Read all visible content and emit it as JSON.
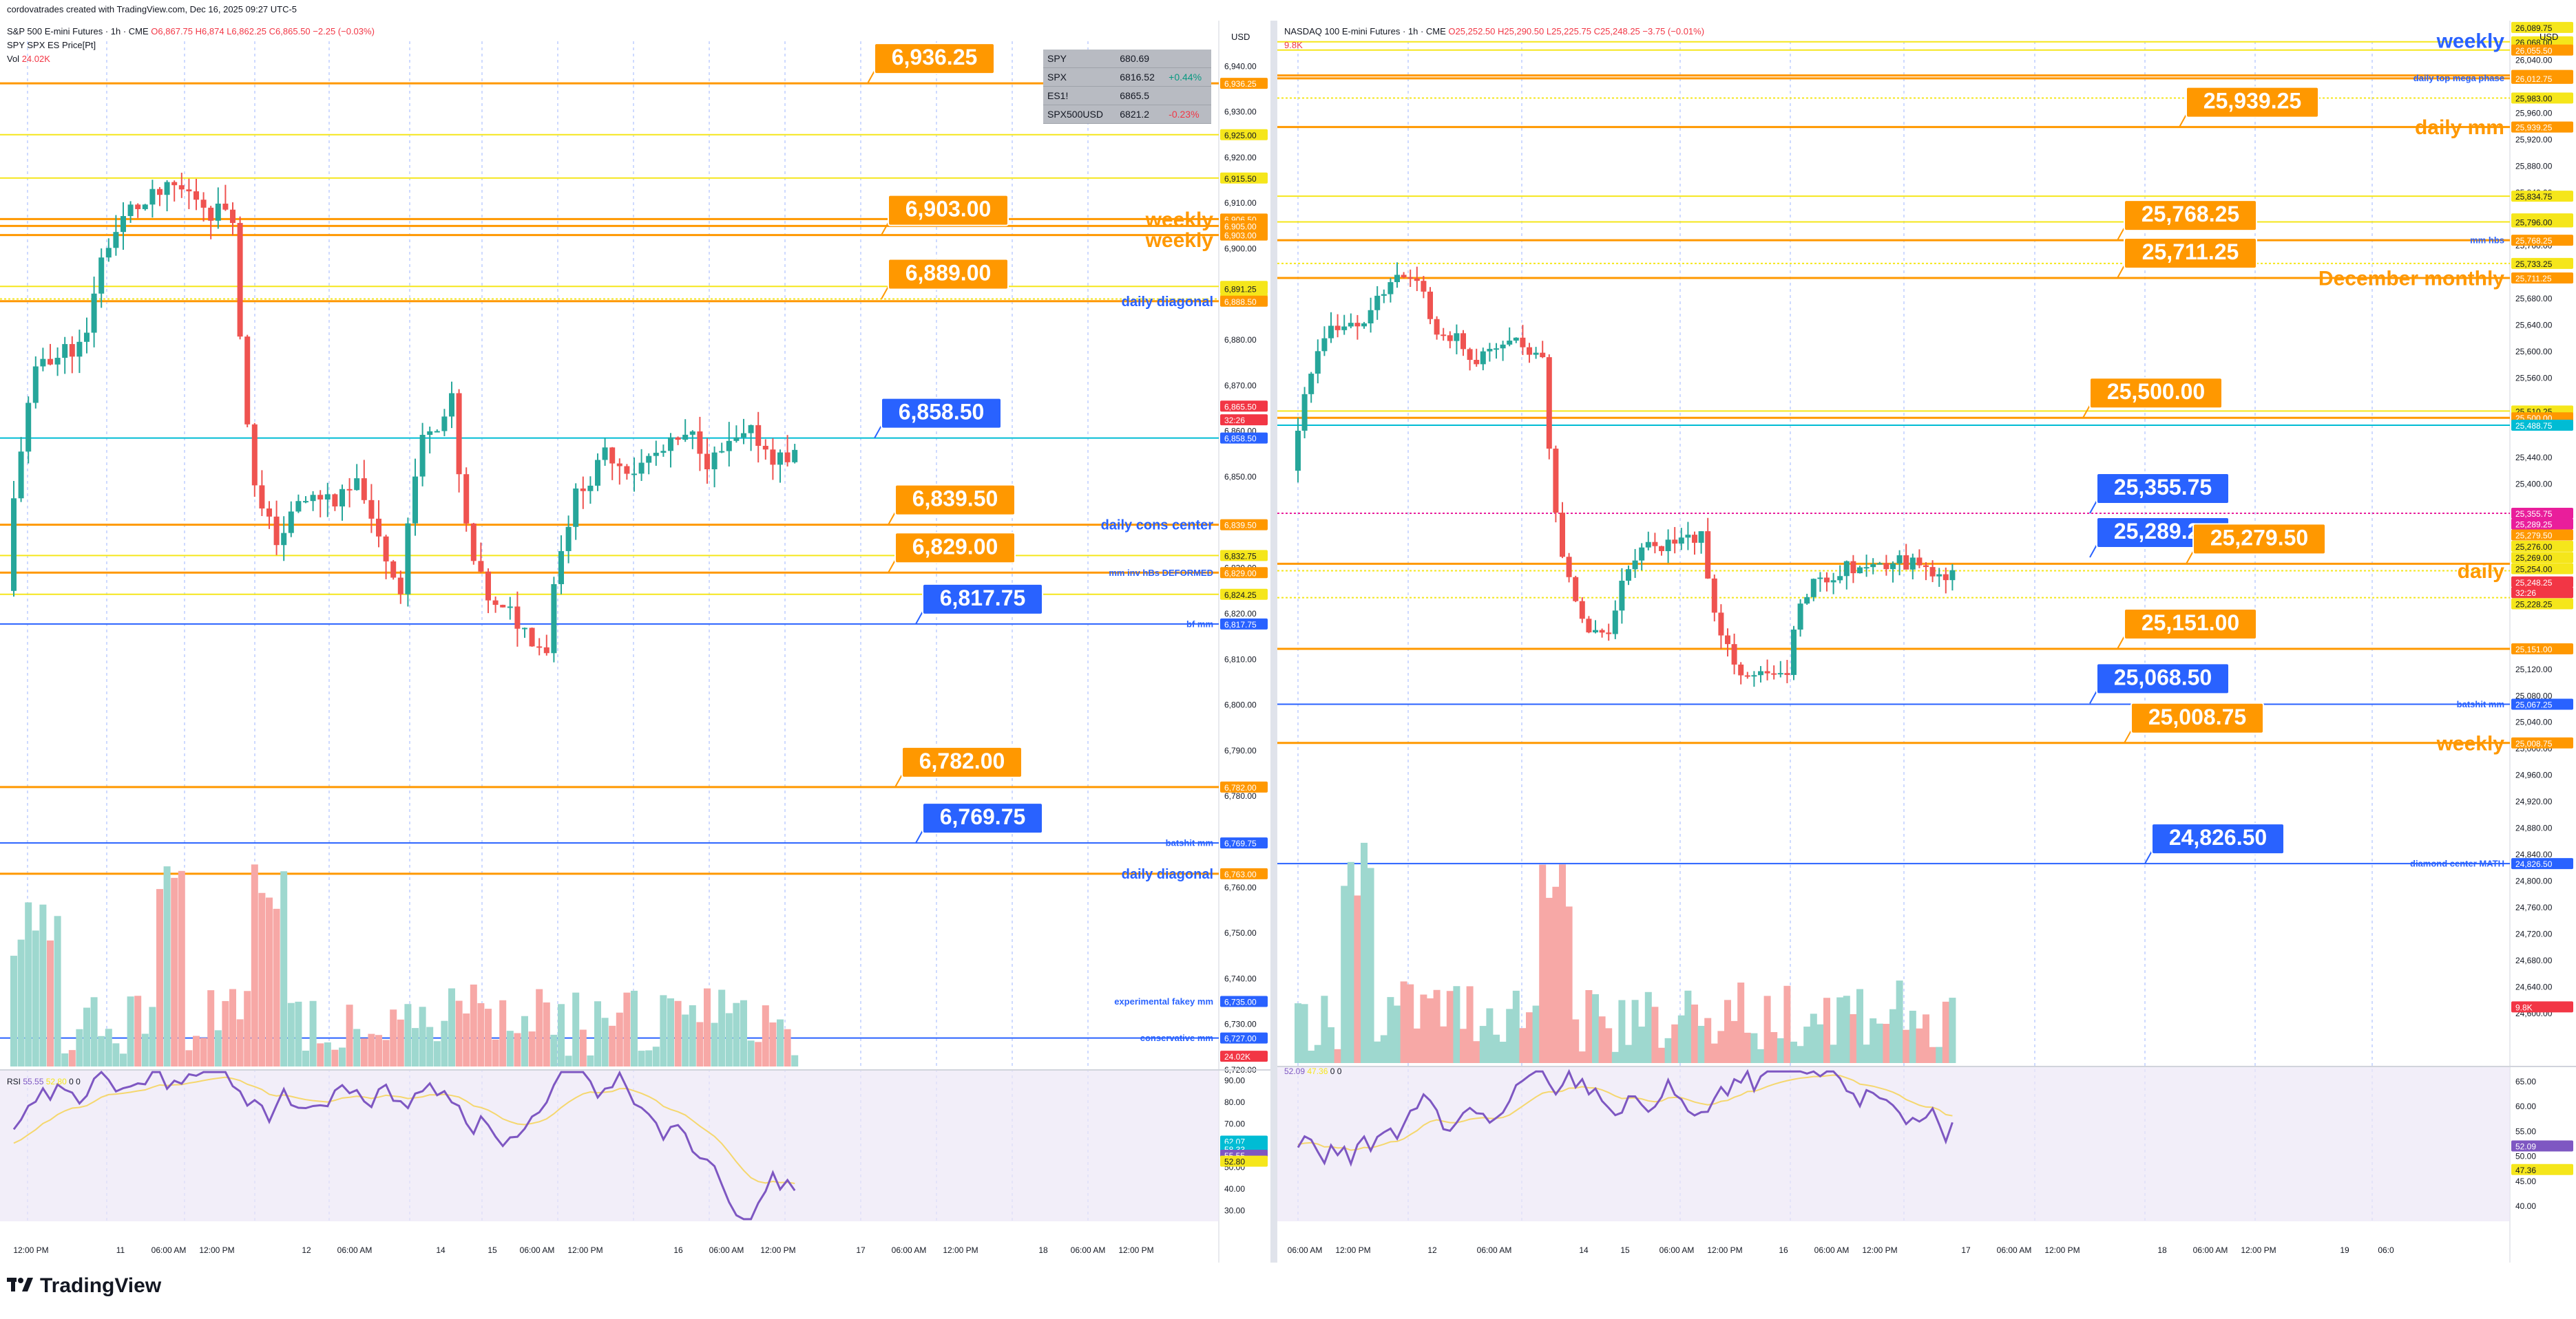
{
  "header": {
    "attribution": "cordovatrades created with TradingView.com, Dec 16, 2025 09:27 UTC-5"
  },
  "branding": {
    "logo_text": "TradingView"
  },
  "colors": {
    "orange": "#ff9800",
    "yellow": "#f5e61b",
    "blue": "#2962ff",
    "teal": "#00bcd4",
    "pink": "#f48fe6",
    "up": "#26a69a",
    "down": "#ef5350",
    "rsi": "#7e57c2"
  },
  "left_chart": {
    "symbol": "S&P 500 E-mini Futures · 1h · CME",
    "ohlc": {
      "o": "O6,867.75",
      "h": "H6,874",
      "l": "L6,862.25",
      "c": "C6,865.50",
      "chg": "−2.25 (−0.03%)"
    },
    "overlay": "SPY SPX ES Price[Pt]",
    "volume_label": "Vol",
    "volume_value": "24.02K",
    "currency": "USD",
    "ylim": [
      6720,
      6950
    ],
    "y_ticks": [
      "6,940.00",
      "6,930.00",
      "6,920.00",
      "6,910.00",
      "6,900.00",
      "6,890.00",
      "6,880.00",
      "6,870.00",
      "6,860.00",
      "6,850.00",
      "6,840.00",
      "6,830.00",
      "6,820.00",
      "6,810.00",
      "6,800.00",
      "6,790.00",
      "6,780.00",
      "6,770.00",
      "6,760.00",
      "6,750.00",
      "6,740.00",
      "6,730.00",
      "6,720.00"
    ],
    "x_ticks": [
      "12:00 PM",
      "11",
      "06:00 AM",
      "12:00 PM",
      "12",
      "06:00 AM",
      "14",
      "15",
      "06:00 AM",
      "12:00 PM",
      "16",
      "06:00 AM",
      "12:00 PM",
      "17",
      "06:00 AM",
      "12:00 PM",
      "18",
      "06:00 AM",
      "12:00 PM"
    ],
    "callouts": [
      {
        "text": "6,936.25",
        "price": 6936.25,
        "kind": "orange"
      },
      {
        "text": "6,903.00",
        "price": 6903.0,
        "kind": "orange"
      },
      {
        "text": "6,889.00",
        "price": 6889.0,
        "kind": "orange"
      },
      {
        "text": "6,858.50",
        "price": 6858.5,
        "kind": "blue"
      },
      {
        "text": "6,839.50",
        "price": 6839.5,
        "kind": "orange"
      },
      {
        "text": "6,829.00",
        "price": 6829.0,
        "kind": "orange"
      },
      {
        "text": "6,817.75",
        "price": 6817.75,
        "kind": "blue"
      },
      {
        "text": "6,782.00",
        "price": 6782.0,
        "kind": "orange"
      },
      {
        "text": "6,769.75",
        "price": 6769.75,
        "kind": "blue"
      }
    ],
    "level_labels": [
      {
        "text": "weekly",
        "price": 6906.5,
        "kind": "orange",
        "size": "big"
      },
      {
        "text": "weekly",
        "price": 6902.0,
        "kind": "orange",
        "size": "big"
      },
      {
        "text": "daily diagonal",
        "price": 6888.5,
        "kind": "blue",
        "size": "mid"
      },
      {
        "text": "daily cons center",
        "price": 6839.5,
        "kind": "blue",
        "size": "mid"
      },
      {
        "text": "mm inv hBs  DEFORMED",
        "price": 6829.0,
        "kind": "blue",
        "size": "small"
      },
      {
        "text": "bf mm",
        "price": 6817.75,
        "kind": "blue",
        "size": "small"
      },
      {
        "text": "batshit mm",
        "price": 6769.75,
        "kind": "blue",
        "size": "small"
      },
      {
        "text": "daily diagonal",
        "price": 6763.0,
        "kind": "blue",
        "size": "mid"
      },
      {
        "text": "experimental fakey mm",
        "price": 6735.0,
        "kind": "blue",
        "size": "small"
      },
      {
        "text": "conservative mm",
        "price": 6727.0,
        "kind": "blue",
        "size": "small"
      }
    ],
    "price_tags": [
      {
        "text": "6,936.25",
        "price": 6936.25,
        "kind": "orange"
      },
      {
        "text": "6,925.00",
        "price": 6925.0,
        "kind": "yellow"
      },
      {
        "text": "6,915.50",
        "price": 6915.5,
        "kind": "yellow"
      },
      {
        "text": "6,906.50",
        "price": 6906.5,
        "kind": "orange"
      },
      {
        "text": "6,905.00",
        "price": 6905.0,
        "kind": "orange"
      },
      {
        "text": "6,903.00",
        "price": 6903.0,
        "kind": "orange"
      },
      {
        "text": "6,891.75",
        "price": 6891.75,
        "kind": "yellow"
      },
      {
        "text": "6,891.25",
        "price": 6891.25,
        "kind": "yellow"
      },
      {
        "text": "6,889.00",
        "price": 6889.0,
        "kind": "yellow"
      },
      {
        "text": "6,888.50",
        "price": 6888.5,
        "kind": "orange"
      },
      {
        "text": "6,865.50",
        "price": 6865.5,
        "kind": "red"
      },
      {
        "text": "32:26",
        "price": 6862.5,
        "kind": "red"
      },
      {
        "text": "6,858.50",
        "price": 6858.5,
        "kind": "blue"
      },
      {
        "text": "6,839.50",
        "price": 6839.5,
        "kind": "orange"
      },
      {
        "text": "6,832.75",
        "price": 6832.75,
        "kind": "yellow"
      },
      {
        "text": "6,829.00",
        "price": 6829.0,
        "kind": "orange"
      },
      {
        "text": "6,824.25",
        "price": 6824.25,
        "kind": "yellow"
      },
      {
        "text": "6,817.75",
        "price": 6817.75,
        "kind": "blue"
      },
      {
        "text": "6,782.00",
        "price": 6782.0,
        "kind": "orange"
      },
      {
        "text": "6,769.75",
        "price": 6769.75,
        "kind": "blue"
      },
      {
        "text": "6,763.00",
        "price": 6763.0,
        "kind": "orange"
      },
      {
        "text": "6,735.00",
        "price": 6735.0,
        "kind": "blue"
      },
      {
        "text": "6,727.00",
        "price": 6727.0,
        "kind": "blue"
      },
      {
        "text": "24.02K",
        "price": 6723.0,
        "kind": "red"
      }
    ],
    "lines": [
      {
        "price": 6936.25,
        "kind": "orange"
      },
      {
        "price": 6925,
        "kind": "yellow"
      },
      {
        "price": 6915.5,
        "kind": "yellow"
      },
      {
        "price": 6906.5,
        "kind": "orange"
      },
      {
        "price": 6905,
        "kind": "orange"
      },
      {
        "price": 6903,
        "kind": "orange"
      },
      {
        "price": 6891.75,
        "kind": "yellow"
      },
      {
        "price": 6889,
        "kind": "yellowdash"
      },
      {
        "price": 6888.5,
        "kind": "orange"
      },
      {
        "price": 6858.5,
        "kind": "teal"
      },
      {
        "price": 6839.5,
        "kind": "orange"
      },
      {
        "price": 6832.75,
        "kind": "yellow"
      },
      {
        "price": 6829,
        "kind": "orange"
      },
      {
        "price": 6824.25,
        "kind": "yellow"
      },
      {
        "price": 6817.75,
        "kind": "blue"
      },
      {
        "price": 6782,
        "kind": "orange"
      },
      {
        "price": 6769.75,
        "kind": "blue"
      },
      {
        "price": 6763,
        "kind": "orange"
      },
      {
        "price": 6727,
        "kind": "blue"
      }
    ],
    "rsi": {
      "label": "RSI",
      "v1": "55.55",
      "v2": "52.80",
      "v3": "0",
      "v4": "0",
      "ylim": [
        25,
        95
      ],
      "ticks": [
        "90.00",
        "80.00",
        "70.00",
        "60.00",
        "50.00",
        "40.00",
        "30.00"
      ],
      "tags": [
        {
          "text": "62.07",
          "v": 62.07,
          "kind": "teal"
        },
        {
          "text": "58.33",
          "v": 58.33,
          "kind": "teal"
        },
        {
          "text": "55.55",
          "v": 55.55,
          "kind": "purple"
        },
        {
          "text": "52.80",
          "v": 52.8,
          "kind": "yellow"
        }
      ]
    },
    "watchlist": [
      {
        "sym": "SPY",
        "price": "680.69",
        "chg": ""
      },
      {
        "sym": "SPX",
        "price": "6816.52",
        "chg": "+0.44%"
      },
      {
        "sym": "ES1!",
        "price": "6865.5",
        "chg": ""
      },
      {
        "sym": "SPX500USD",
        "price": "6821.2",
        "chg": "-0.23%"
      }
    ]
  },
  "right_chart": {
    "symbol": "NASDAQ 100 E-mini Futures · 1h · CME",
    "ohlc": {
      "o": "O25,252.50",
      "h": "H25,290.50",
      "l": "L25,225.75",
      "c": "C25,248.25",
      "chg": "−3.75 (−0.01%)"
    },
    "volume_value": "9.8K",
    "currency": "USD",
    "ylim": [
      24520,
      26100
    ],
    "y_ticks": [
      "26,040.00",
      "25,960.00",
      "25,920.00",
      "25,880.00",
      "25,840.00",
      "25,760.00",
      "25,680.00",
      "25,640.00",
      "25,600.00",
      "25,560.00",
      "25,440.00",
      "25,400.00",
      "25,120.00",
      "25,080.00",
      "25,040.00",
      "25,000.00",
      "24,960.00",
      "24,920.00",
      "24,880.00",
      "24,840.00",
      "24,800.00",
      "24,760.00",
      "24,720.00",
      "24,680.00",
      "24,640.00",
      "24,600.00"
    ],
    "x_ticks": [
      "06:00 AM",
      "12:00 PM",
      "12",
      "06:00 AM",
      "14",
      "15",
      "06:00 AM",
      "12:00 PM",
      "16",
      "06:00 AM",
      "12:00 PM",
      "17",
      "06:00 AM",
      "12:00 PM",
      "18",
      "06:00 AM",
      "12:00 PM",
      "19",
      "06:0"
    ],
    "callouts": [
      {
        "text": "25,939.25",
        "price": 25939.25,
        "kind": "orange"
      },
      {
        "text": "25,768.25",
        "price": 25768.25,
        "kind": "orange"
      },
      {
        "text": "25,711.25",
        "price": 25711.25,
        "kind": "orange"
      },
      {
        "text": "25,500.00",
        "price": 25500,
        "kind": "orange"
      },
      {
        "text": "25,355.75",
        "price": 25355.75,
        "kind": "blue"
      },
      {
        "text": "25,289.25",
        "price": 25289.25,
        "kind": "blue"
      },
      {
        "text": "25,279.50",
        "price": 25279.5,
        "kind": "orange"
      },
      {
        "text": "25,151.00",
        "price": 25151,
        "kind": "orange"
      },
      {
        "text": "25,068.50",
        "price": 25068.5,
        "kind": "blue"
      },
      {
        "text": "25,008.75",
        "price": 25008.75,
        "kind": "orange"
      },
      {
        "text": "24,826.50",
        "price": 24826.5,
        "kind": "blue"
      }
    ],
    "level_labels": [
      {
        "text": "weekly",
        "price": 26070,
        "kind": "blue",
        "size": "big"
      },
      {
        "text": "daily top mega phase",
        "price": 26013,
        "kind": "blue",
        "size": "small"
      },
      {
        "text": "daily mm",
        "price": 25939.25,
        "kind": "orange",
        "size": "big"
      },
      {
        "text": "mm hbs",
        "price": 25768.25,
        "kind": "blue",
        "size": "small"
      },
      {
        "text": "December monthly",
        "price": 25711.25,
        "kind": "orange",
        "size": "big"
      },
      {
        "text": "daily",
        "price": 25269,
        "kind": "orange",
        "size": "big"
      },
      {
        "text": "batshit mm",
        "price": 25067.25,
        "kind": "blue",
        "size": "small"
      },
      {
        "text": "weekly",
        "price": 25008.75,
        "kind": "orange",
        "size": "big"
      },
      {
        "text": "diamond center MATH",
        "price": 24826.5,
        "kind": "blue",
        "size": "small"
      }
    ],
    "price_tags": [
      {
        "text": "26,089.75",
        "price": 26089.75,
        "kind": "yellow"
      },
      {
        "text": "26,068.00",
        "price": 26068,
        "kind": "yellow"
      },
      {
        "text": "26,055.50",
        "price": 26055.5,
        "kind": "orange"
      },
      {
        "text": "26,017.25",
        "price": 26017.25,
        "kind": "orange"
      },
      {
        "text": "26,012.75",
        "price": 26012.75,
        "kind": "orange"
      },
      {
        "text": "25,983.00",
        "price": 25983,
        "kind": "yellow"
      },
      {
        "text": "25,939.25",
        "price": 25939.25,
        "kind": "orange"
      },
      {
        "text": "25,834.75",
        "price": 25834.75,
        "kind": "yellow"
      },
      {
        "text": "25,800.50",
        "price": 25800.5,
        "kind": "yellow"
      },
      {
        "text": "25,796.00",
        "price": 25796,
        "kind": "yellow"
      },
      {
        "text": "25,768.25",
        "price": 25768.25,
        "kind": "orange"
      },
      {
        "text": "25,733.25",
        "price": 25733.25,
        "kind": "yellow"
      },
      {
        "text": "25,711.25",
        "price": 25711.25,
        "kind": "orange"
      },
      {
        "text": "25,510.25",
        "price": 25510.25,
        "kind": "yellow"
      },
      {
        "text": "25,500.00",
        "price": 25500,
        "kind": "orange"
      },
      {
        "text": "25,488.75",
        "price": 25488.75,
        "kind": "teal"
      },
      {
        "text": "25,355.75",
        "price": 25355.75,
        "kind": "magenta"
      },
      {
        "text": "25,289.25",
        "price": 25339.5,
        "kind": "magenta"
      },
      {
        "text": "25,279.50",
        "price": 25323,
        "kind": "orange"
      },
      {
        "text": "25,276.00",
        "price": 25306,
        "kind": "yellow"
      },
      {
        "text": "25,269.00",
        "price": 25289,
        "kind": "yellow"
      },
      {
        "text": "25,254.00",
        "price": 25272,
        "kind": "yellow"
      },
      {
        "text": "25,248.25",
        "price": 25252,
        "kind": "red"
      },
      {
        "text": "32:26",
        "price": 25236,
        "kind": "red"
      },
      {
        "text": "25,228.25",
        "price": 25219,
        "kind": "yellow"
      },
      {
        "text": "25,151.00",
        "price": 25151,
        "kind": "orange"
      },
      {
        "text": "25,067.25",
        "price": 25067.25,
        "kind": "blue"
      },
      {
        "text": "25,008.75",
        "price": 25008.75,
        "kind": "orange"
      },
      {
        "text": "24,826.50",
        "price": 24826.5,
        "kind": "blue"
      },
      {
        "text": "9.8K",
        "price": 24610,
        "kind": "red"
      }
    ],
    "lines": [
      {
        "price": 26068,
        "kind": "yellow"
      },
      {
        "price": 26055.5,
        "kind": "yellow"
      },
      {
        "price": 26017.25,
        "kind": "orange"
      },
      {
        "price": 26012.75,
        "kind": "orange"
      },
      {
        "price": 25983,
        "kind": "yellowdash"
      },
      {
        "price": 25939.25,
        "kind": "orange"
      },
      {
        "price": 25834.75,
        "kind": "yellow"
      },
      {
        "price": 25796,
        "kind": "yellow"
      },
      {
        "price": 25768.25,
        "kind": "orange"
      },
      {
        "price": 25733.25,
        "kind": "yellowdash"
      },
      {
        "price": 25711.25,
        "kind": "orange"
      },
      {
        "price": 25510.25,
        "kind": "yellow"
      },
      {
        "price": 25500,
        "kind": "orange"
      },
      {
        "price": 25488.75,
        "kind": "teal"
      },
      {
        "price": 25355.75,
        "kind": "magentadash"
      },
      {
        "price": 25279.5,
        "kind": "orange"
      },
      {
        "price": 25269,
        "kind": "yellowdash"
      },
      {
        "price": 25228.25,
        "kind": "yellowdash"
      },
      {
        "price": 25151,
        "kind": "orange"
      },
      {
        "price": 25067.25,
        "kind": "blue"
      },
      {
        "price": 25008.75,
        "kind": "orange"
      },
      {
        "price": 24826.5,
        "kind": "blue"
      }
    ],
    "rsi": {
      "v1": "52.09",
      "v2": "47.36",
      "v3": "0",
      "v4": "0",
      "ylim": [
        37,
        68
      ],
      "ticks": [
        "65.00",
        "60.00",
        "55.00",
        "50.00",
        "45.00",
        "40.00"
      ],
      "tags": [
        {
          "text": "52.09",
          "v": 52.09,
          "kind": "purple"
        },
        {
          "text": "47.36",
          "v": 47.36,
          "kind": "yellow"
        }
      ]
    }
  }
}
